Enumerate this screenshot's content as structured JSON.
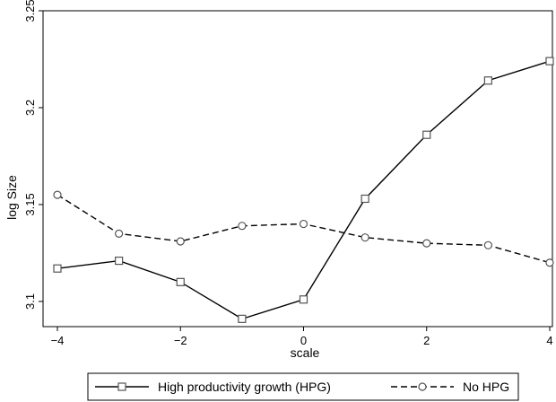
{
  "chart_data": {
    "type": "line",
    "title": "",
    "xlabel": "scale",
    "ylabel": "log Size",
    "x": [
      -4,
      -3,
      -2,
      -1,
      0,
      1,
      2,
      3,
      4
    ],
    "xticks": [
      -4,
      -2,
      0,
      2,
      4
    ],
    "xtick_labels": [
      "−4",
      "−2",
      "0",
      "2",
      "4"
    ],
    "yticks": [
      3.1,
      3.15,
      3.2,
      3.25
    ],
    "ytick_labels": [
      "3.1",
      "3.15",
      "3.2",
      "3.25"
    ],
    "xlim": [
      -4,
      4
    ],
    "ylim": [
      3.087,
      3.25
    ],
    "grid": false,
    "legend_position": "bottom",
    "series": [
      {
        "name": "High productivity growth (HPG)",
        "values": [
          3.117,
          3.121,
          3.11,
          3.091,
          3.101,
          3.153,
          3.186,
          3.214,
          3.224
        ],
        "line_style": "solid",
        "marker": "square",
        "color": "#000000",
        "marker_color": "#555555"
      },
      {
        "name": "No HPG",
        "values": [
          3.155,
          3.135,
          3.131,
          3.139,
          3.14,
          3.133,
          3.13,
          3.129,
          3.12
        ],
        "line_style": "dashed",
        "marker": "circle",
        "color": "#000000",
        "marker_color": "#555555"
      }
    ]
  }
}
